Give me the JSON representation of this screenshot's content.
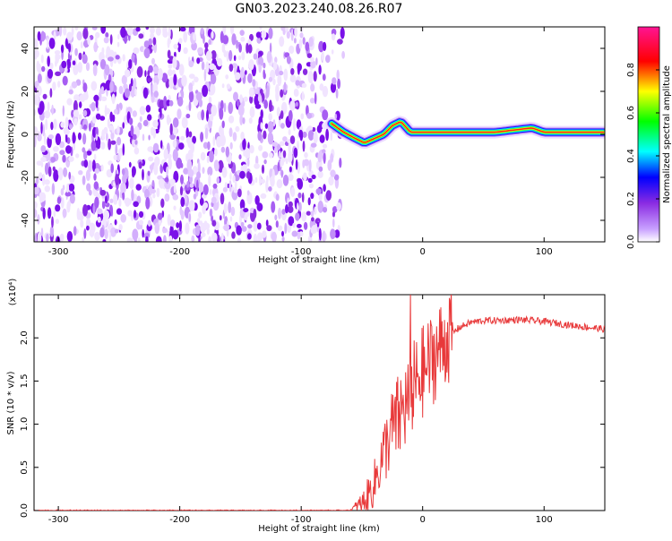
{
  "title": "GN03.2023.240.08.26.R07",
  "chart_data": [
    {
      "type": "heatmap",
      "xlabel": "Height of straight line (km)",
      "ylabel": "Frequency (Hz)",
      "xlim": [
        -320,
        150
      ],
      "ylim": [
        -50,
        50
      ],
      "x_ticks": [
        -300,
        -200,
        -100,
        0,
        100
      ],
      "y_ticks": [
        -40,
        -20,
        0,
        20,
        40
      ],
      "colorbar": {
        "label": "Normalized spectral amplitude",
        "range": [
          0.0,
          1.0
        ],
        "ticks": [
          0.0,
          0.2,
          0.4,
          0.6,
          0.8
        ],
        "tick_labels": [
          "0.0",
          "0.2",
          "0.4",
          "0.6",
          "0.8"
        ],
        "colors": [
          "#ffffff",
          "#8a2be2",
          "#0000ff",
          "#00ffff",
          "#00ff00",
          "#ffff00",
          "#ff0000",
          "#ff1493"
        ]
      },
      "noise_region_x": [
        -320,
        -65
      ],
      "signal_track": {
        "x": [
          -75,
          -65,
          -55,
          -48,
          -40,
          -32,
          -25,
          -18,
          -10,
          0,
          20,
          60,
          90,
          100,
          120,
          150
        ],
        "freq": [
          5,
          1,
          -2,
          -4,
          -2,
          0,
          4,
          6,
          1,
          1,
          1,
          1,
          3,
          1,
          1,
          1
        ]
      }
    },
    {
      "type": "line",
      "xlabel": "Height of straight line (km)",
      "ylabel": "SNR (10 * v/v)",
      "multiplier": "(x10⁴)",
      "xlim": [
        -320,
        150
      ],
      "ylim": [
        0,
        2.5
      ],
      "x_ticks": [
        -300,
        -200,
        -100,
        0,
        100
      ],
      "y_ticks": [
        0.0,
        0.5,
        1.0,
        1.5,
        2.0
      ],
      "y_tick_labels": [
        "0.0",
        "0.5",
        "1.0",
        "1.5",
        "2.0"
      ],
      "series": [
        {
          "color": "#e8393a",
          "x": [
            -320,
            -60,
            -48,
            -40,
            -35,
            -30,
            -25,
            -20,
            -15,
            -10,
            -5,
            0,
            5,
            10,
            20,
            30,
            40,
            50,
            60,
            80,
            100,
            120,
            150
          ],
          "y": [
            0.0,
            0.0,
            0.1,
            0.3,
            0.55,
            0.75,
            0.95,
            1.05,
            1.2,
            1.35,
            1.5,
            1.6,
            1.7,
            1.8,
            2.0,
            2.12,
            2.18,
            2.2,
            2.2,
            2.21,
            2.19,
            2.15,
            2.1
          ]
        }
      ]
    }
  ]
}
